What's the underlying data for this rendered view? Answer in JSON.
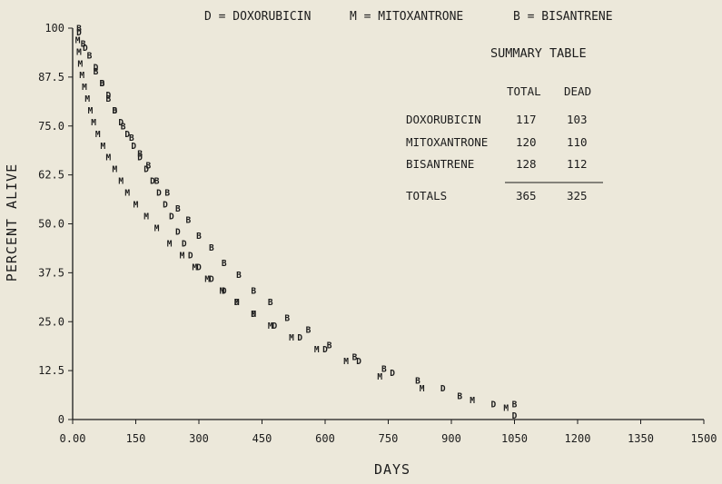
{
  "chart_data": {
    "type": "scatter",
    "xlabel": "DAYS",
    "ylabel": "PERCENT ALIVE",
    "xlim": [
      0,
      1500
    ],
    "ylim": [
      0,
      100
    ],
    "x_ticks": [
      "0.00",
      "150",
      "300",
      "450",
      "600",
      "750",
      "900",
      "1050",
      "1200",
      "1350",
      "1500"
    ],
    "y_ticks": [
      "0",
      "12.5",
      "25.0",
      "37.5",
      "50.0",
      "62.5",
      "75.0",
      "87.5",
      "100"
    ],
    "legend": [
      {
        "symbol": "D",
        "label": "D = DOXORUBICIN"
      },
      {
        "symbol": "M",
        "label": "M = MITOXANTRONE"
      },
      {
        "symbol": "B",
        "label": "B = BISANTRENE"
      }
    ],
    "series": [
      {
        "name": "DOXORUBICIN",
        "symbol": "D",
        "x": [
          15,
          30,
          55,
          70,
          85,
          100,
          115,
          130,
          145,
          160,
          175,
          190,
          205,
          220,
          235,
          250,
          265,
          280,
          300,
          330,
          360,
          390,
          430,
          480,
          540,
          600,
          680,
          760,
          880,
          1000,
          1050
        ],
        "y": [
          99,
          95,
          90,
          86,
          83,
          79,
          76,
          73,
          70,
          67,
          64,
          61,
          58,
          55,
          52,
          48,
          45,
          42,
          39,
          36,
          33,
          30,
          27,
          24,
          21,
          18,
          15,
          12,
          8,
          4,
          1
        ]
      },
      {
        "name": "MITOXANTRONE",
        "symbol": "M",
        "x": [
          12,
          15,
          18,
          22,
          28,
          35,
          42,
          50,
          60,
          72,
          85,
          100,
          115,
          130,
          150,
          175,
          200,
          230,
          260,
          290,
          320,
          355,
          390,
          430,
          470,
          520,
          580,
          650,
          730,
          830,
          950,
          1030
        ],
        "y": [
          97,
          94,
          91,
          88,
          85,
          82,
          79,
          76,
          73,
          70,
          67,
          64,
          61,
          58,
          55,
          52,
          49,
          45,
          42,
          39,
          36,
          33,
          30,
          27,
          24,
          21,
          18,
          15,
          11,
          8,
          5,
          3
        ]
      },
      {
        "name": "BISANTRENE",
        "symbol": "B",
        "x": [
          15,
          25,
          40,
          55,
          70,
          85,
          100,
          120,
          140,
          160,
          180,
          200,
          225,
          250,
          275,
          300,
          330,
          360,
          395,
          430,
          470,
          510,
          560,
          610,
          670,
          740,
          820,
          920,
          1050
        ],
        "y": [
          100,
          96,
          93,
          89,
          86,
          82,
          79,
          75,
          72,
          68,
          65,
          61,
          58,
          54,
          51,
          47,
          44,
          40,
          37,
          33,
          30,
          26,
          23,
          19,
          16,
          13,
          10,
          6,
          4
        ]
      }
    ],
    "summary_table": {
      "title": "SUMMARY TABLE",
      "columns": [
        "",
        "TOTAL",
        "DEAD"
      ],
      "rows": [
        {
          "label": "DOXORUBICIN",
          "total": "117",
          "dead": "103"
        },
        {
          "label": "MITOXANTRONE",
          "total": "120",
          "dead": "110"
        },
        {
          "label": "BISANTRENE",
          "total": "128",
          "dead": "112"
        }
      ],
      "totals": {
        "label": "TOTALS",
        "total": "365",
        "dead": "325"
      }
    }
  }
}
